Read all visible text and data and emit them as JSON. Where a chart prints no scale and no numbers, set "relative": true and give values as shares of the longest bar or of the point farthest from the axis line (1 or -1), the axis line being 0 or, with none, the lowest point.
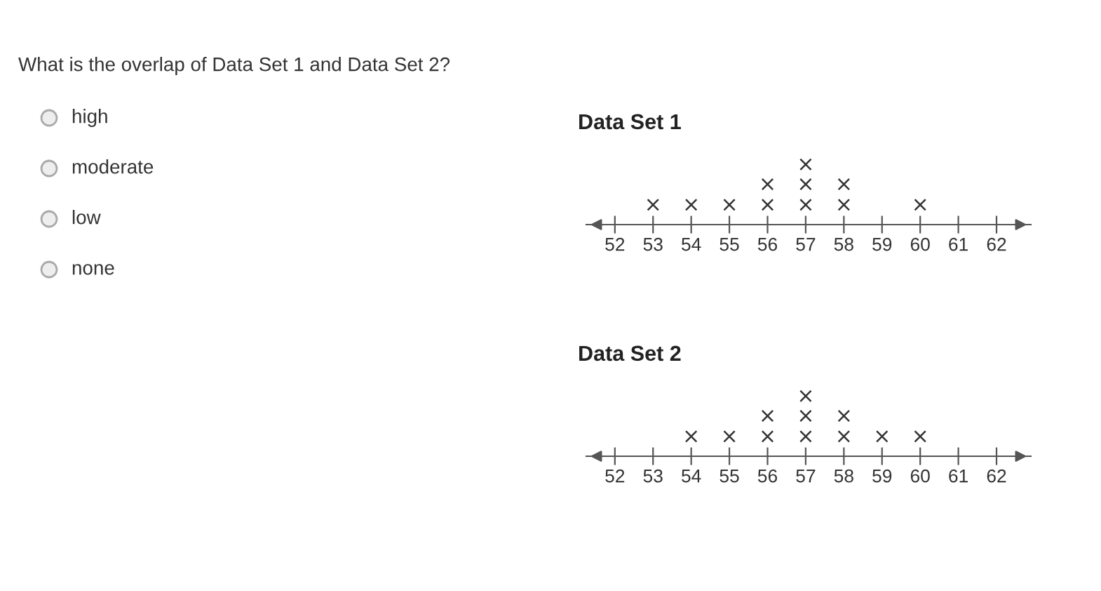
{
  "chart_data": [
    {
      "type": "other",
      "title": "What is the overlap of Data Set 1 and Data Set 2?",
      "annotations": [
        "high",
        "moderate",
        "low",
        "none"
      ]
    },
    {
      "type": "scatter",
      "title": "Data Set 1",
      "relative": true,
      "marker": "cross",
      "xlim": [
        51.25,
        62.9
      ],
      "xticks": [
        52,
        53,
        54,
        55,
        56,
        57,
        58,
        59,
        60,
        61,
        62
      ],
      "series": [
        {
          "color": "#333333",
          "x": [
            53,
            54,
            55,
            56,
            56,
            57,
            57,
            57,
            58,
            58,
            60
          ],
          "values": [
            0.33,
            0.33,
            0.33,
            0.33,
            0.67,
            0.33,
            0.67,
            1,
            0.33,
            0.67,
            0.33
          ]
        }
      ]
    },
    {
      "type": "scatter",
      "title": "Data Set 2",
      "relative": true,
      "marker": "cross",
      "xlim": [
        51.25,
        62.9
      ],
      "xticks": [
        52,
        53,
        54,
        55,
        56,
        57,
        58,
        59,
        60,
        61,
        62
      ],
      "series": [
        {
          "color": "#333333",
          "x": [
            54,
            55,
            56,
            56,
            57,
            57,
            57,
            58,
            58,
            59,
            60
          ],
          "values": [
            0.33,
            0.33,
            0.33,
            0.67,
            0.33,
            0.67,
            1,
            0.33,
            0.67,
            0.33,
            0.33
          ]
        }
      ]
    }
  ]
}
